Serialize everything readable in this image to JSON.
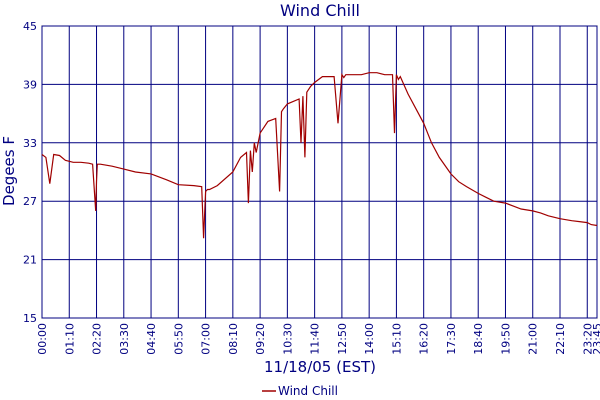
{
  "chart_data": {
    "type": "line",
    "title": "Wind Chill",
    "xlabel": "11/18/05 (EST)",
    "ylabel": "Degees F",
    "ylim": [
      15,
      45
    ],
    "yticks": [
      15,
      21,
      27,
      33,
      39,
      45
    ],
    "xlim": [
      "00:00",
      "23:45"
    ],
    "xticks": [
      "00:00",
      "01:10",
      "02:20",
      "03:30",
      "04:40",
      "05:50",
      "07:00",
      "08:10",
      "09:20",
      "10:30",
      "11:40",
      "12:50",
      "14:00",
      "15:10",
      "16:20",
      "17:30",
      "18:40",
      "19:50",
      "21:00",
      "22:10",
      "23:20",
      "23:45"
    ],
    "grid": true,
    "legend": "bottom",
    "series": [
      {
        "name": "Wind Chill",
        "color": "#a00000",
        "x": [
          "00:00",
          "00:10",
          "00:20",
          "00:30",
          "00:45",
          "01:00",
          "01:20",
          "01:40",
          "02:00",
          "02:10",
          "02:18",
          "02:20",
          "02:22",
          "02:30",
          "02:45",
          "03:00",
          "03:30",
          "04:00",
          "04:40",
          "05:20",
          "05:50",
          "06:30",
          "06:50",
          "06:55",
          "07:00",
          "07:05",
          "07:10",
          "07:30",
          "08:10",
          "08:30",
          "08:45",
          "08:50",
          "08:55",
          "09:00",
          "09:05",
          "09:10",
          "09:20",
          "09:40",
          "10:00",
          "10:10",
          "10:15",
          "10:20",
          "10:30",
          "11:00",
          "11:05",
          "11:10",
          "11:15",
          "11:20",
          "11:30",
          "11:40",
          "12:00",
          "12:20",
          "12:30",
          "12:40",
          "12:50",
          "12:55",
          "13:00",
          "13:10",
          "13:40",
          "14:00",
          "14:20",
          "14:40",
          "14:50",
          "15:00",
          "15:05",
          "15:10",
          "15:15",
          "15:20",
          "15:40",
          "16:00",
          "16:20",
          "16:40",
          "17:00",
          "17:30",
          "17:50",
          "18:10",
          "18:40",
          "19:00",
          "19:20",
          "19:50",
          "20:10",
          "20:30",
          "21:00",
          "21:20",
          "21:40",
          "22:10",
          "22:40",
          "23:00",
          "23:20",
          "23:30",
          "23:45"
        ],
        "y": [
          31.8,
          31.5,
          28.8,
          31.8,
          31.7,
          31.2,
          31.0,
          31.0,
          30.9,
          30.8,
          26.0,
          29.0,
          30.8,
          30.8,
          30.7,
          30.6,
          30.3,
          30.0,
          29.8,
          29.2,
          28.7,
          28.6,
          28.5,
          23.2,
          28.0,
          28.2,
          28.2,
          28.6,
          30.0,
          31.5,
          32.0,
          26.8,
          32.2,
          30.0,
          33.0,
          32.0,
          34.0,
          35.2,
          35.5,
          28.0,
          36.2,
          36.5,
          37.0,
          37.5,
          33.0,
          37.8,
          31.5,
          38.2,
          38.8,
          39.2,
          39.8,
          39.8,
          39.8,
          35.0,
          40.0,
          39.7,
          40.0,
          40.0,
          40.0,
          40.2,
          40.2,
          40.0,
          40.0,
          40.0,
          34.0,
          40.0,
          39.5,
          39.8,
          38.0,
          36.5,
          35.0,
          33.0,
          31.5,
          29.8,
          29.0,
          28.5,
          27.8,
          27.4,
          27.0,
          26.8,
          26.5,
          26.2,
          26.0,
          25.8,
          25.5,
          25.2,
          25.0,
          24.9,
          24.8,
          24.6,
          24.5
        ]
      }
    ]
  }
}
